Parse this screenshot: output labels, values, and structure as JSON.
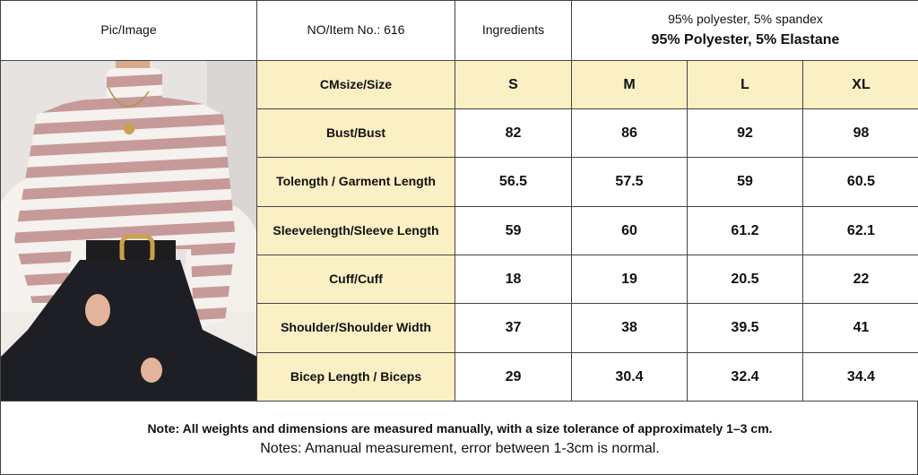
{
  "header": {
    "pic_label": "Pic/Image",
    "item_label": "NO/Item No.: 616",
    "ingredients_label": "Ingredients",
    "ingredients_line1": "95% polyester, 5% spandex",
    "ingredients_line2": "95% Polyester, 5% Elastane"
  },
  "table": {
    "size_label": "CMsize/Size",
    "sizes": [
      "S",
      "M",
      "L",
      "XL"
    ],
    "rows": [
      {
        "label": "Bust/Bust",
        "values": [
          "82",
          "86",
          "92",
          "98"
        ]
      },
      {
        "label": "Tolength / Garment Length",
        "values": [
          "56.5",
          "57.5",
          "59",
          "60.5"
        ]
      },
      {
        "label": "Sleevelength/Sleeve Length",
        "values": [
          "59",
          "60",
          "61.2",
          "62.1"
        ]
      },
      {
        "label": "Cuff/Cuff",
        "values": [
          "18",
          "19",
          "20.5",
          "22"
        ]
      },
      {
        "label": "Shoulder/Shoulder Width",
        "values": [
          "37",
          "38",
          "39.5",
          "41"
        ]
      },
      {
        "label": "Bicep Length / Biceps",
        "values": [
          "29",
          "30.4",
          "32.4",
          "34.4"
        ]
      }
    ]
  },
  "notes": {
    "line1": "Note: All weights and dimensions are measured manually, with a size tolerance of approximately 1–3 cm.",
    "line2": "Notes:  Amanual measurement, error between 1-3cm is normal."
  },
  "colors": {
    "label_bg": "#fbefc4",
    "stripe_pink": "#c79a9a",
    "stripe_white": "#f4f1ee"
  }
}
